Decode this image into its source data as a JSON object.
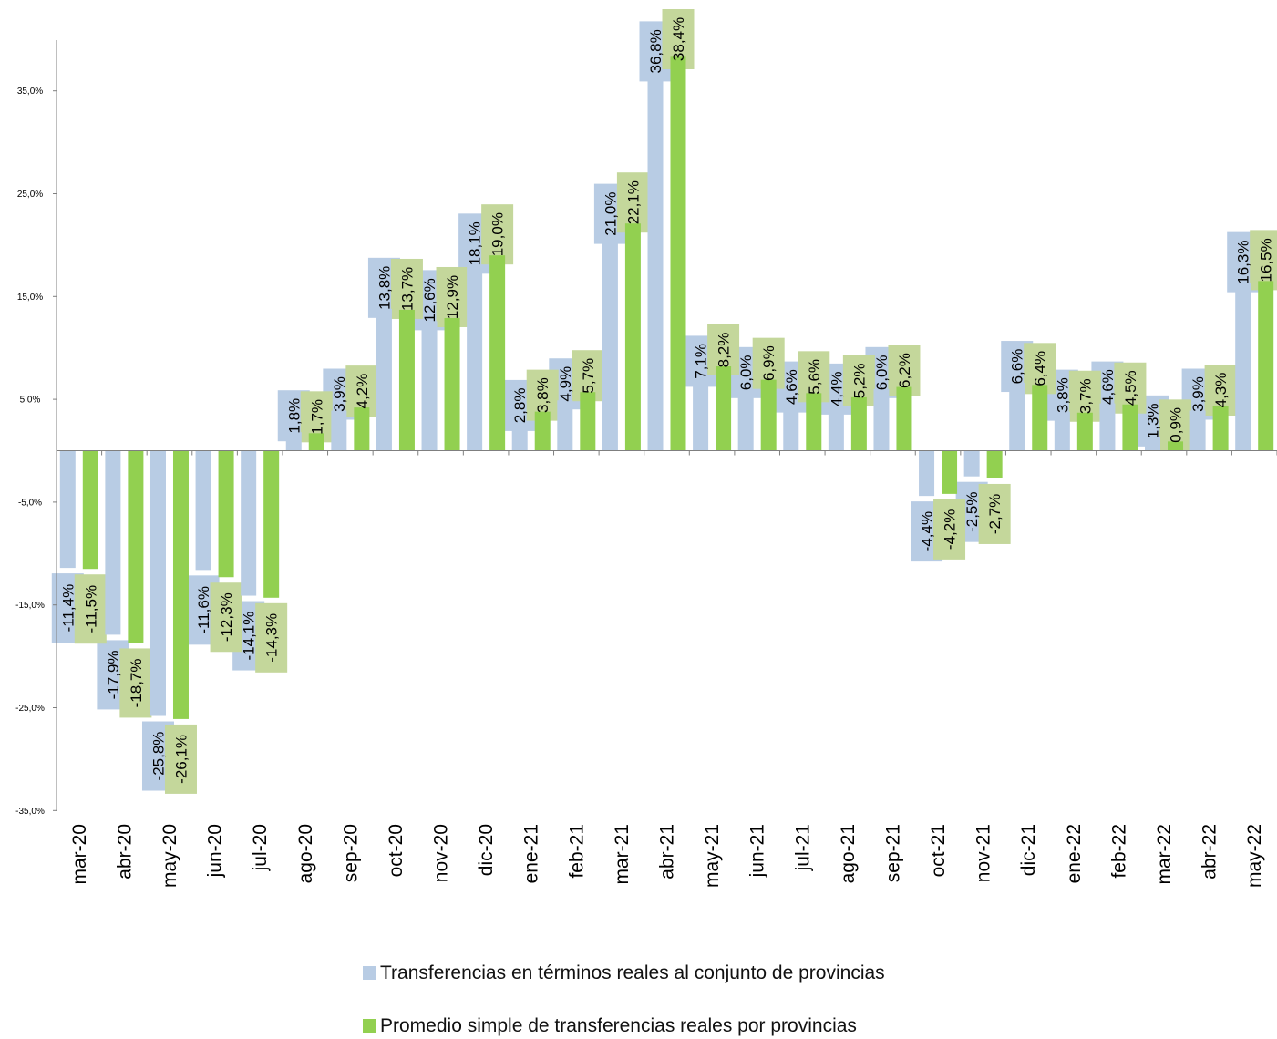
{
  "chart_data": {
    "type": "bar",
    "categories": [
      "mar-20",
      "abr-20",
      "may-20",
      "jun-20",
      "jul-20",
      "ago-20",
      "sep-20",
      "oct-20",
      "nov-20",
      "dic-20",
      "ene-21",
      "feb-21",
      "mar-21",
      "abr-21",
      "may-21",
      "jun-21",
      "jul-21",
      "ago-21",
      "sep-21",
      "oct-21",
      "nov-21",
      "dic-21",
      "ene-22",
      "feb-22",
      "mar-22",
      "abr-22",
      "may-22"
    ],
    "series": [
      {
        "name": "Transferencias en términos reales al conjunto de provincias",
        "color": "#b8cce4",
        "values": [
          -11.4,
          -17.9,
          -25.8,
          -11.6,
          -14.1,
          1.8,
          3.9,
          13.8,
          12.6,
          18.1,
          2.8,
          4.9,
          21.0,
          36.8,
          7.1,
          6.0,
          4.6,
          4.4,
          6.0,
          -4.4,
          -2.5,
          6.6,
          3.8,
          4.6,
          1.3,
          3.9,
          16.3
        ],
        "labels": [
          "-11,4%",
          "-17,9%",
          "-25,8%",
          "-11,6%",
          "-14,1%",
          "1,8%",
          "3,9%",
          "13,8%",
          "12,6%",
          "18,1%",
          "2,8%",
          "4,9%",
          "21,0%",
          "36,8%",
          "7,1%",
          "6,0%",
          "4,6%",
          "4,4%",
          "6,0%",
          "-4,4%",
          "-2,5%",
          "6,6%",
          "3,8%",
          "4,6%",
          "1,3%",
          "3,9%",
          "16,3%"
        ]
      },
      {
        "name": "Promedio simple de transferencias reales por provincias",
        "color": "#92d050",
        "values": [
          -11.5,
          -18.7,
          -26.1,
          -12.3,
          -14.3,
          1.7,
          4.2,
          13.7,
          12.9,
          19.0,
          3.8,
          5.7,
          22.1,
          38.4,
          8.2,
          6.9,
          5.6,
          5.2,
          6.2,
          -4.2,
          -2.7,
          6.4,
          3.7,
          4.5,
          0.9,
          4.3,
          16.5
        ],
        "labels": [
          "-11,5%",
          "-18,7%",
          "-26,1%",
          "-12,3%",
          "-14,3%",
          "1,7%",
          "4,2%",
          "13,7%",
          "12,9%",
          "19,0%",
          "3,8%",
          "5,7%",
          "22,1%",
          "38,4%",
          "8,2%",
          "6,9%",
          "5,6%",
          "5,2%",
          "6,2%",
          "-4,2%",
          "-2,7%",
          "6,4%",
          "3,7%",
          "4,5%",
          "0,9%",
          "4,3%",
          "16,5%"
        ]
      }
    ],
    "label_box_colors": [
      "#b8cce4",
      "#c4d79b"
    ],
    "yticks": [
      "35,0%",
      "25,0%",
      "15,0%",
      "5,0%",
      "-5,0%",
      "-15,0%",
      "-25,0%",
      "-35,0%"
    ],
    "ytick_values": [
      35,
      25,
      15,
      5,
      -5,
      -15,
      -25,
      -35
    ],
    "ylim": [
      -35,
      40
    ],
    "title": "",
    "xlabel": "",
    "ylabel": "",
    "grid": false,
    "legend_position": "bottom"
  }
}
